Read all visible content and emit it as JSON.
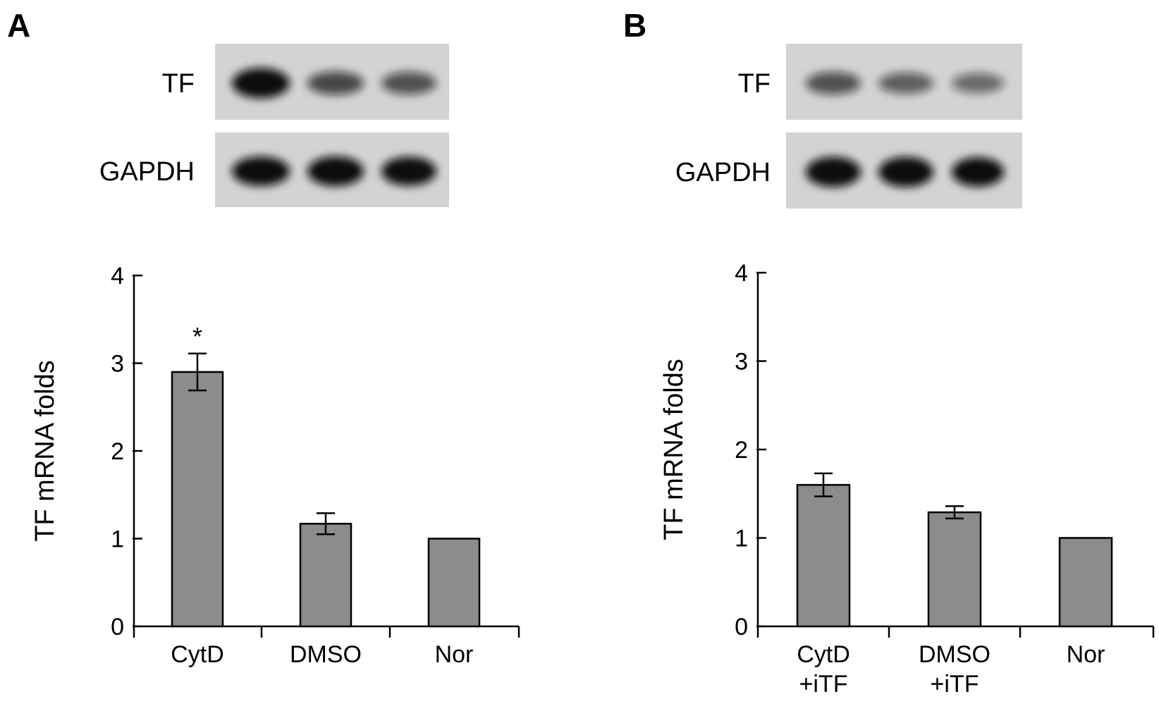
{
  "panels": [
    {
      "letter": "A",
      "blot": {
        "rows": [
          {
            "label": "TF",
            "intensities": [
              0.95,
              0.55,
              0.5
            ]
          },
          {
            "label": "GAPDH",
            "intensities": [
              0.9,
              0.92,
              0.88
            ]
          }
        ]
      }
    },
    {
      "letter": "B",
      "blot": {
        "rows": [
          {
            "label": "TF",
            "intensities": [
              0.5,
              0.42,
              0.35
            ]
          },
          {
            "label": "GAPDH",
            "intensities": [
              0.95,
              0.95,
              0.9
            ]
          }
        ]
      }
    }
  ],
  "colors": {
    "bar": "#8c8c8c",
    "axis": "#000000",
    "blot_background": "#d3d3d3",
    "band": "#111111"
  },
  "chart_data": [
    {
      "type": "bar",
      "title": "",
      "xlabel": "",
      "ylabel": "TF mRNA folds",
      "ylim": [
        0,
        4
      ],
      "yticks": [
        "0",
        "1",
        "2",
        "3",
        "4"
      ],
      "categories": [
        [
          "CytD"
        ],
        [
          "DMSO"
        ],
        [
          "Nor"
        ]
      ],
      "values": [
        2.9,
        1.17,
        1.0
      ],
      "errors": [
        0.21,
        0.12,
        0
      ],
      "annotations": [
        "*",
        "",
        ""
      ],
      "grid": false,
      "legend": "none"
    },
    {
      "type": "bar",
      "title": "",
      "xlabel": "",
      "ylabel": "TF mRNA folds",
      "ylim": [
        0,
        4
      ],
      "yticks": [
        "0",
        "1",
        "2",
        "3",
        "4"
      ],
      "categories": [
        [
          "CytD",
          "+iTF"
        ],
        [
          "DMSO",
          "+iTF"
        ],
        [
          "Nor"
        ]
      ],
      "values": [
        1.6,
        1.29,
        1.0
      ],
      "errors": [
        0.13,
        0.07,
        0
      ],
      "annotations": [
        "",
        "",
        ""
      ],
      "grid": false,
      "legend": "none"
    }
  ]
}
